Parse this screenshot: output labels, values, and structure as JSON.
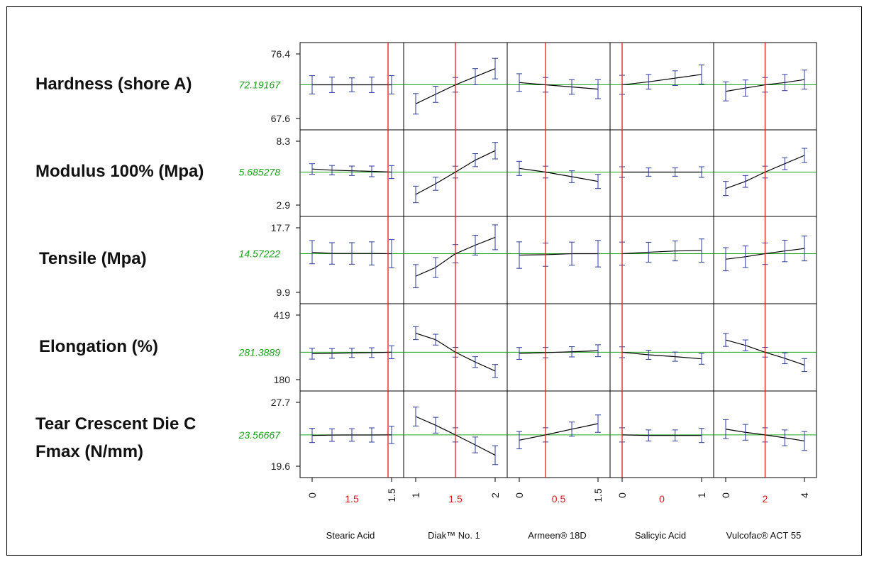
{
  "chart_data": {
    "type": "line",
    "title": "",
    "colors": {
      "frame": "#000000",
      "predicted_line": "#000000",
      "error_bars": "#2e3c9e",
      "current_response_line": "#17a317",
      "current_factor_line": "#e01b1b",
      "current_value_text": "#17a317",
      "current_setting_text": "#e01b1b"
    },
    "factors": [
      {
        "name": "Stearic Acid",
        "ticks": [
          "0",
          "1.5",
          "1.5"
        ],
        "tick_colors": [
          "black",
          "red",
          "black"
        ],
        "current_setting": "1.5",
        "current_position": 1.0,
        "levels": [
          0,
          0.25,
          0.5,
          0.75,
          1.0
        ]
      },
      {
        "name": "Diak™ No. 1",
        "ticks": [
          "1",
          "1.5",
          "2"
        ],
        "tick_colors": [
          "black",
          "red",
          "black"
        ],
        "current_setting": "1.5",
        "current_position": 0.5,
        "levels": [
          0,
          0.25,
          0.5,
          0.75,
          1.0
        ]
      },
      {
        "name": "Armeen® 18D",
        "ticks": [
          "0",
          "0.5",
          "1.5"
        ],
        "tick_colors": [
          "black",
          "red",
          "black"
        ],
        "current_setting": "0.5",
        "current_position": 0.333,
        "levels": [
          0,
          0.333,
          0.667,
          1.0
        ]
      },
      {
        "name": "Salicyic Acid",
        "ticks": [
          "0",
          "0",
          "1"
        ],
        "tick_colors": [
          "black",
          "red",
          "black"
        ],
        "current_setting": "0",
        "current_position": 0.0,
        "levels": [
          0,
          0.333,
          0.667,
          1.0
        ]
      },
      {
        "name": "Vulcofac® ACT 55",
        "ticks": [
          "0",
          "2",
          "4"
        ],
        "tick_colors": [
          "black",
          "red",
          "black"
        ],
        "current_setting": "2",
        "current_position": 0.5,
        "levels": [
          0,
          0.25,
          0.5,
          0.75,
          1.0
        ]
      }
    ],
    "responses": [
      {
        "name": "Hardness (shore A)",
        "current_value": "72.19167",
        "current": 72.19167,
        "ylim": [
          67.6,
          76.4
        ],
        "yticks": [
          "76.4",
          "67.6"
        ],
        "series": [
          {
            "factor": "Stearic Acid",
            "values": [
              72.19,
              72.19,
              72.19,
              72.19,
              72.19
            ],
            "half_ci": [
              1.25,
              1.05,
              0.95,
              1.05,
              1.25
            ]
          },
          {
            "factor": "Diak™ No. 1",
            "values": [
              69.6,
              70.9,
              72.19,
              73.3,
              74.4
            ],
            "half_ci": [
              1.4,
              1.1,
              1.0,
              1.1,
              1.4
            ]
          },
          {
            "factor": "Armeen® 18D",
            "values": [
              72.5,
              72.19,
              71.9,
              71.6
            ],
            "half_ci": [
              1.2,
              1.0,
              1.0,
              1.3
            ]
          },
          {
            "factor": "Salicyic Acid",
            "values": [
              72.19,
              72.6,
              73.1,
              73.6
            ],
            "half_ci": [
              1.3,
              1.0,
              1.0,
              1.3
            ]
          },
          {
            "factor": "Vulcofac® ACT 55",
            "values": [
              71.3,
              71.75,
              72.19,
              72.5,
              72.9
            ],
            "half_ci": [
              1.3,
              1.1,
              1.0,
              1.1,
              1.3
            ]
          }
        ]
      },
      {
        "name": "Modulus 100% (Mpa)",
        "current_value": "5.685278",
        "current": 5.685278,
        "ylim": [
          2.9,
          8.3
        ],
        "yticks": [
          "8.3",
          "2.9"
        ],
        "series": [
          {
            "factor": "Stearic Acid",
            "values": [
              5.95,
              5.85,
              5.8,
              5.75,
              5.69
            ],
            "half_ci": [
              0.45,
              0.4,
              0.4,
              0.45,
              0.55
            ]
          },
          {
            "factor": "Diak™ No. 1",
            "values": [
              3.8,
              4.7,
              5.69,
              6.7,
              7.5
            ],
            "half_ci": [
              0.7,
              0.55,
              0.5,
              0.55,
              0.7
            ]
          },
          {
            "factor": "Armeen® 18D",
            "values": [
              6.0,
              5.69,
              5.3,
              4.9
            ],
            "half_ci": [
              0.6,
              0.5,
              0.5,
              0.6
            ]
          },
          {
            "factor": "Salicyic Acid",
            "values": [
              5.69,
              5.69,
              5.69,
              5.69
            ],
            "half_ci": [
              0.45,
              0.35,
              0.35,
              0.45
            ]
          },
          {
            "factor": "Vulcofac® ACT 55",
            "values": [
              4.3,
              4.9,
              5.69,
              6.4,
              7.1
            ],
            "half_ci": [
              0.6,
              0.5,
              0.5,
              0.5,
              0.6
            ]
          }
        ]
      },
      {
        "name": "Tensile (Mpa)",
        "current_value": "14.57222",
        "current": 14.57222,
        "ylim": [
          9.9,
          17.7
        ],
        "yticks": [
          "17.7",
          "9.9"
        ],
        "series": [
          {
            "factor": "Stearic Acid",
            "values": [
              14.75,
              14.6,
              14.6,
              14.6,
              14.57
            ],
            "half_ci": [
              1.4,
              1.3,
              1.3,
              1.4,
              1.7
            ]
          },
          {
            "factor": "Diak™ No. 1",
            "values": [
              11.85,
              12.9,
              14.57,
              15.6,
              16.55
            ],
            "half_ci": [
              1.4,
              1.2,
              1.1,
              1.2,
              1.5
            ]
          },
          {
            "factor": "Armeen® 18D",
            "values": [
              14.4,
              14.45,
              14.57,
              14.57
            ],
            "half_ci": [
              1.6,
              1.4,
              1.4,
              1.6
            ]
          },
          {
            "factor": "Salicyic Acid",
            "values": [
              14.57,
              14.75,
              14.9,
              14.95
            ],
            "half_ci": [
              1.4,
              1.2,
              1.2,
              1.4
            ]
          },
          {
            "factor": "Vulcofac® ACT 55",
            "values": [
              13.9,
              14.2,
              14.57,
              14.9,
              15.2
            ],
            "half_ci": [
              1.4,
              1.3,
              1.3,
              1.3,
              1.5
            ]
          }
        ]
      },
      {
        "name": "Elongation (%)",
        "current_value": "281.3889",
        "current": 281.3889,
        "ylim": [
          180,
          419
        ],
        "yticks": [
          "419",
          "180"
        ],
        "series": [
          {
            "factor": "Stearic Acid",
            "values": [
              276,
              277,
              279,
              280,
              281.4
            ],
            "half_ci": [
              20,
              18,
              17,
              18,
              24
            ]
          },
          {
            "factor": "Diak™ No. 1",
            "values": [
              352,
              328,
              281.4,
              245,
              212
            ],
            "half_ci": [
              24,
              20,
              18,
              20,
              24
            ]
          },
          {
            "factor": "Armeen® 18D",
            "values": [
              277,
              280,
              283,
              287
            ],
            "half_ci": [
              22,
              19,
              19,
              22
            ]
          },
          {
            "factor": "Salicyic Acid",
            "values": [
              281.4,
              272,
              265,
              257
            ],
            "half_ci": [
              20,
              17,
              17,
              20
            ]
          },
          {
            "factor": "Vulcofac® ACT 55",
            "values": [
              327,
              307,
              281.4,
              259,
              234
            ],
            "half_ci": [
              24,
              20,
              18,
              20,
              24
            ]
          }
        ]
      },
      {
        "name": "Tear Crescent Die C Fmax (N/mm)",
        "current_value": "23.56667",
        "current": 23.56667,
        "ylim": [
          19.6,
          27.7
        ],
        "yticks": [
          "27.7",
          "19.6"
        ],
        "series": [
          {
            "factor": "Stearic Acid",
            "values": [
              23.5,
              23.55,
              23.56,
              23.56,
              23.57
            ],
            "half_ci": [
              0.9,
              0.8,
              0.8,
              0.9,
              1.1
            ]
          },
          {
            "factor": "Diak™ No. 1",
            "values": [
              25.9,
              24.8,
              23.57,
              22.3,
              21.0
            ],
            "half_ci": [
              1.2,
              1.0,
              0.9,
              1.0,
              1.2
            ]
          },
          {
            "factor": "Armeen® 18D",
            "values": [
              22.9,
              23.57,
              24.3,
              25.0
            ],
            "half_ci": [
              1.1,
              0.9,
              0.9,
              1.1
            ]
          },
          {
            "factor": "Salicyic Acid",
            "values": [
              23.57,
              23.5,
              23.5,
              23.5
            ],
            "half_ci": [
              0.9,
              0.7,
              0.7,
              0.9
            ]
          },
          {
            "factor": "Vulcofac® ACT 55",
            "values": [
              24.3,
              23.9,
              23.57,
              23.2,
              22.8
            ],
            "half_ci": [
              1.2,
              1.0,
              0.9,
              1.0,
              1.2
            ]
          }
        ]
      }
    ]
  }
}
